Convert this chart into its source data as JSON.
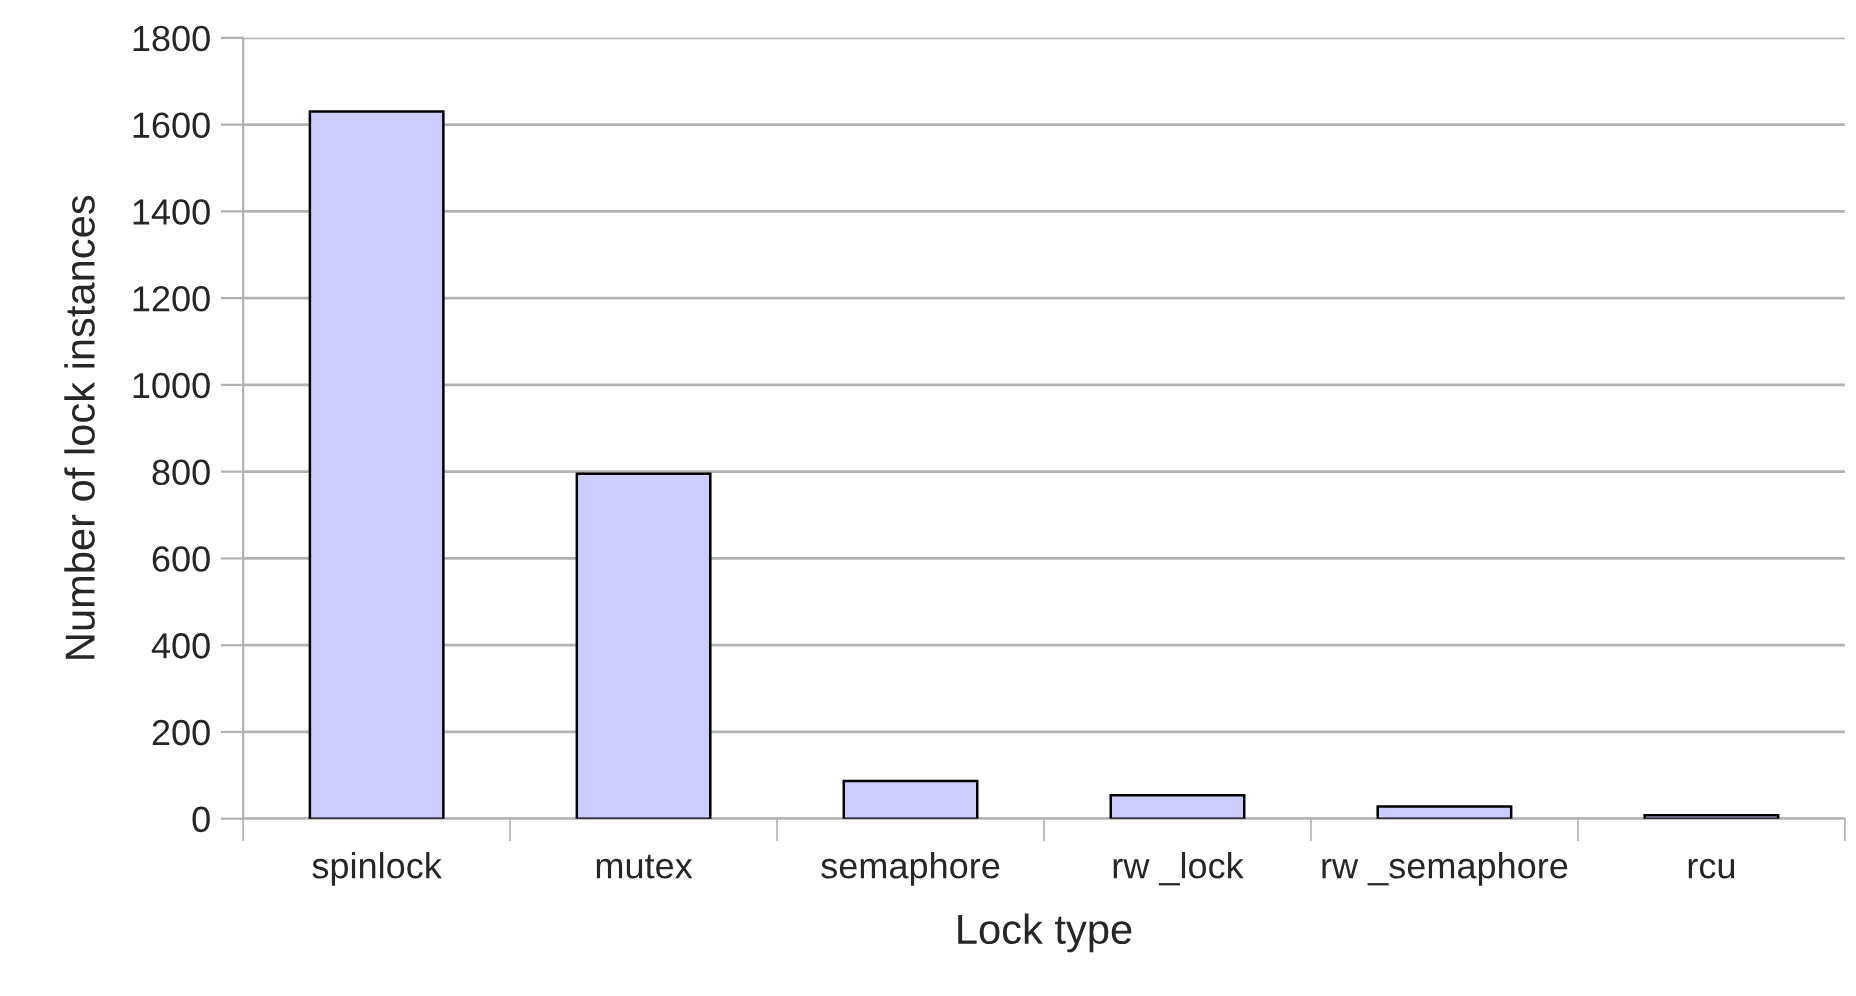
{
  "chart_data": {
    "type": "bar",
    "xlabel": "Lock type",
    "ylabel": "Number of lock instances",
    "categories": [
      "spinlock",
      "mutex",
      "semaphore",
      "rw _lock",
      "rw _semaphore",
      "rcu"
    ],
    "values": [
      1630,
      795,
      87,
      54,
      28,
      8
    ],
    "color": "#ccccff",
    "ylim": [
      0,
      1800
    ],
    "yticks": [
      0,
      200,
      400,
      600,
      800,
      1000,
      1200,
      1400,
      1600,
      1800
    ],
    "grid": "y",
    "legend": false
  }
}
